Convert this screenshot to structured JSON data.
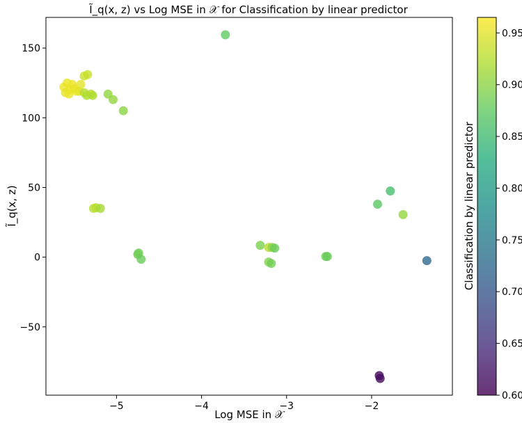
{
  "chart_data": {
    "type": "scatter",
    "title": "Ĩ_q(x, z) vs Log MSE in 𝒳 for Classification by linear predictor",
    "xlabel": "Log MSE in 𝒳",
    "ylabel": "Ĩ_q(x, z)",
    "xlim": [
      -5.83,
      -1.05
    ],
    "ylim": [
      -99,
      172
    ],
    "x_ticks": [
      -5,
      -4,
      -3,
      -2
    ],
    "x_tick_labels": [
      "−5",
      "−4",
      "−3",
      "−2"
    ],
    "y_ticks": [
      -50,
      0,
      50,
      100,
      150
    ],
    "y_tick_labels": [
      "−50",
      "0",
      "50",
      "100",
      "150"
    ],
    "grid": false,
    "colorbar": {
      "label": "Classification by linear predictor",
      "colormap": "viridis",
      "alpha": 0.8,
      "range": [
        0.6,
        0.965
      ],
      "ticks": [
        0.6,
        0.65,
        0.7,
        0.75,
        0.8,
        0.85,
        0.9,
        0.95
      ],
      "tick_labels": [
        "0.60",
        "0.65",
        "0.70",
        "0.75",
        "0.80",
        "0.85",
        "0.90",
        "0.95"
      ]
    },
    "points": [
      {
        "x": -5.62,
        "y": 122,
        "c": 0.955
      },
      {
        "x": -5.58,
        "y": 125,
        "c": 0.955
      },
      {
        "x": -5.55,
        "y": 120,
        "c": 0.955
      },
      {
        "x": -5.52,
        "y": 124,
        "c": 0.955
      },
      {
        "x": -5.5,
        "y": 121,
        "c": 0.955
      },
      {
        "x": -5.47,
        "y": 119,
        "c": 0.955
      },
      {
        "x": -5.6,
        "y": 118,
        "c": 0.95
      },
      {
        "x": -5.44,
        "y": 119,
        "c": 0.95
      },
      {
        "x": -5.56,
        "y": 117,
        "c": 0.955
      },
      {
        "x": -5.42,
        "y": 124,
        "c": 0.95
      },
      {
        "x": -5.38,
        "y": 130,
        "c": 0.935
      },
      {
        "x": -5.34,
        "y": 131,
        "c": 0.935
      },
      {
        "x": -5.38,
        "y": 118,
        "c": 0.925
      },
      {
        "x": -5.35,
        "y": 116,
        "c": 0.92
      },
      {
        "x": -5.3,
        "y": 117,
        "c": 0.925
      },
      {
        "x": -5.28,
        "y": 116,
        "c": 0.92
      },
      {
        "x": -5.1,
        "y": 117,
        "c": 0.905
      },
      {
        "x": -5.04,
        "y": 113,
        "c": 0.905
      },
      {
        "x": -4.92,
        "y": 105,
        "c": 0.9
      },
      {
        "x": -5.27,
        "y": 35,
        "c": 0.925
      },
      {
        "x": -5.24,
        "y": 35.5,
        "c": 0.925
      },
      {
        "x": -5.19,
        "y": 35,
        "c": 0.915
      },
      {
        "x": -4.75,
        "y": 2,
        "c": 0.885
      },
      {
        "x": -4.74,
        "y": 3,
        "c": 0.885
      },
      {
        "x": -4.71,
        "y": -1.5,
        "c": 0.88
      },
      {
        "x": -3.72,
        "y": 159.5,
        "c": 0.875
      },
      {
        "x": -3.31,
        "y": 8.5,
        "c": 0.89
      },
      {
        "x": -3.21,
        "y": 7,
        "c": 0.925
      },
      {
        "x": -3.17,
        "y": 7,
        "c": 0.9
      },
      {
        "x": -3.14,
        "y": 6.5,
        "c": 0.88
      },
      {
        "x": -3.21,
        "y": -3.5,
        "c": 0.895
      },
      {
        "x": -3.18,
        "y": -4.5,
        "c": 0.885
      },
      {
        "x": -2.54,
        "y": 0.5,
        "c": 0.885
      },
      {
        "x": -2.52,
        "y": 0.5,
        "c": 0.88
      },
      {
        "x": -1.93,
        "y": 38,
        "c": 0.87
      },
      {
        "x": -1.78,
        "y": 47.5,
        "c": 0.855
      },
      {
        "x": -1.63,
        "y": 30.5,
        "c": 0.905
      },
      {
        "x": -1.35,
        "y": -2.5,
        "c": 0.725
      },
      {
        "x": -1.91,
        "y": -85,
        "c": 0.605
      },
      {
        "x": -1.9,
        "y": -87,
        "c": 0.61
      }
    ]
  }
}
